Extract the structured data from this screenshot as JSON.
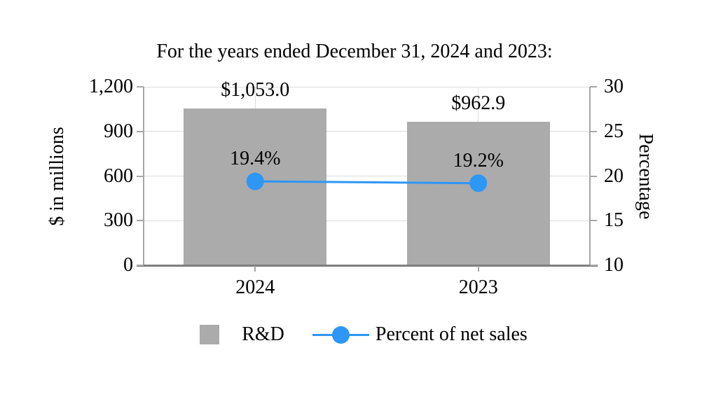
{
  "chart_data": {
    "type": "bar",
    "title": "For the years ended December 31, 2024 and 2023:",
    "categories": [
      "2024",
      "2023"
    ],
    "series": [
      {
        "name": "R&D",
        "type": "bar",
        "axis": "left",
        "values": [
          1053.0,
          962.9
        ],
        "labels": [
          "$1,053.0",
          "$962.9"
        ],
        "color": "#ababab"
      },
      {
        "name": "Percent of net sales",
        "type": "line",
        "axis": "right",
        "values": [
          19.4,
          19.2
        ],
        "labels": [
          "19.4%",
          "19.2%"
        ],
        "color": "#2e96f5"
      }
    ],
    "left_axis": {
      "title": "$ in millions",
      "min": 0,
      "max": 1200,
      "tick_values": [
        0,
        300,
        600,
        900,
        1200
      ],
      "ticks": [
        "0",
        "300",
        "600",
        "900",
        "1,200"
      ]
    },
    "right_axis": {
      "title": "Percentage",
      "min": 10,
      "max": 30,
      "tick_values": [
        10,
        15,
        20,
        25,
        30
      ],
      "ticks": [
        "10",
        "15",
        "20",
        "25",
        "30"
      ]
    },
    "legend": {
      "position": "bottom",
      "items": [
        "R&D",
        "Percent of net sales"
      ]
    },
    "grid": true
  }
}
